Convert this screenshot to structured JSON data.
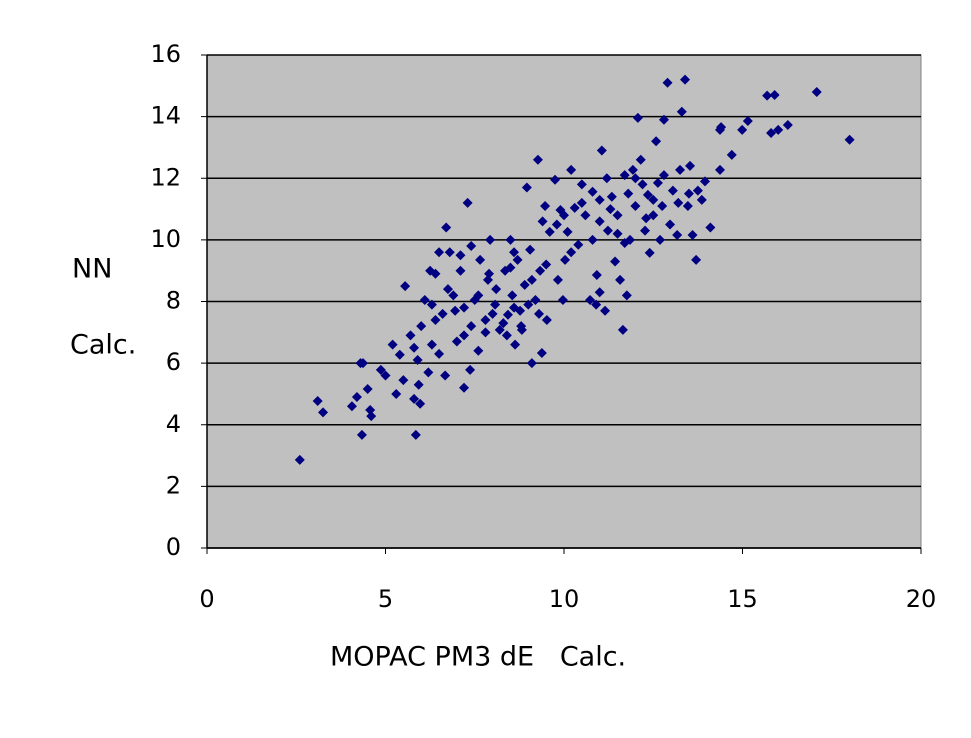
{
  "chart_data": {
    "type": "scatter",
    "xlabel": "MOPAC PM3 dE   Calc.",
    "ylabel": [
      "NN",
      "Calc."
    ],
    "xlim": [
      0,
      20
    ],
    "xticks": [
      0,
      5,
      10,
      15,
      20
    ],
    "ylim": [
      0,
      16
    ],
    "yticks": [
      0,
      2,
      4,
      6,
      8,
      10,
      12,
      14,
      16
    ],
    "grid": true,
    "background": "#c0c0c0",
    "color": "#000080",
    "x": [
      2.6,
      3.1,
      3.25,
      4.06,
      4.2,
      4.34,
      4.37,
      4.5,
      4.57,
      4.6,
      4.87,
      5.0,
      5.2,
      5.4,
      5.55,
      5.5,
      5.7,
      5.8,
      5.85,
      5.9,
      5.97,
      5.93,
      6.1,
      6.25,
      6.3,
      6.4,
      6.5,
      6.67,
      6.7,
      6.75,
      6.95,
      7.1,
      7.2,
      7.2,
      7.3,
      7.37,
      7.4,
      7.5,
      7.6,
      7.65,
      7.8,
      7.87,
      7.93,
      8.07,
      8.2,
      8.35,
      8.43,
      8.5,
      8.55,
      8.63,
      8.7,
      8.77,
      8.82,
      8.9,
      8.96,
      9.05,
      9.1,
      9.2,
      9.27,
      9.33,
      9.38,
      9.47,
      9.52,
      9.6,
      9.75,
      9.83,
      9.9,
      9.97,
      10.03,
      10.1,
      10.2,
      10.3,
      10.4,
      10.5,
      10.6,
      10.73,
      10.8,
      10.92,
      11.0,
      11.06,
      11.15,
      11.23,
      11.34,
      11.43,
      11.5,
      11.57,
      11.65,
      11.7,
      11.76,
      11.85,
      11.93,
      12.0,
      12.07,
      12.15,
      12.27,
      12.35,
      12.4,
      12.5,
      12.58,
      12.63,
      12.69,
      12.75,
      12.8,
      12.9,
      12.97,
      13.05,
      13.17,
      13.25,
      13.3,
      13.39,
      13.47,
      13.53,
      13.6,
      13.7,
      13.75,
      13.86,
      13.95,
      14.1,
      14.37,
      14.37,
      14.4,
      14.7,
      14.99,
      15.15,
      15.69,
      15.9,
      15.8,
      16.0,
      16.27,
      17.08,
      18.0,
      7.8,
      8.0,
      8.3,
      8.6,
      8.8,
      9.0,
      8.4,
      8.1,
      7.9,
      8.5,
      9.1,
      9.3,
      7.6,
      7.2,
      6.9,
      6.6,
      6.3,
      6.0,
      5.8,
      6.2,
      6.5,
      7.0,
      7.4,
      10.0,
      10.5,
      11.0,
      11.3,
      11.8,
      12.2,
      12.5,
      11.5,
      10.8,
      10.2,
      9.5,
      9.8,
      11.2,
      12.0,
      12.8,
      13.2,
      13.5,
      12.3,
      11.7,
      10.9,
      11.0,
      9.4,
      8.6,
      7.1,
      6.8,
      6.4,
      5.3,
      4.3
    ],
    "y": [
      2.86,
      4.77,
      4.4,
      4.6,
      4.9,
      3.67,
      6.0,
      5.16,
      4.48,
      4.28,
      5.78,
      5.6,
      6.6,
      6.27,
      8.5,
      5.45,
      6.9,
      4.84,
      3.67,
      6.1,
      4.68,
      5.3,
      8.05,
      9.0,
      6.6,
      7.4,
      9.6,
      5.6,
      10.4,
      8.4,
      7.7,
      9.0,
      6.9,
      5.2,
      11.2,
      5.78,
      9.8,
      8.05,
      6.4,
      9.35,
      7.4,
      8.7,
      10.0,
      7.9,
      7.08,
      9.0,
      7.57,
      10.0,
      8.2,
      6.6,
      9.35,
      7.7,
      7.08,
      8.54,
      11.7,
      9.68,
      6.0,
      8.05,
      12.6,
      9.0,
      6.33,
      11.1,
      7.4,
      10.26,
      11.95,
      8.7,
      10.97,
      8.05,
      9.35,
      10.26,
      12.27,
      11.04,
      9.84,
      11.8,
      10.8,
      8.05,
      11.56,
      8.86,
      11.3,
      12.9,
      7.7,
      10.3,
      11.4,
      9.3,
      10.8,
      8.7,
      7.08,
      12.1,
      8.2,
      10.0,
      12.27,
      11.1,
      13.96,
      12.6,
      10.3,
      11.46,
      9.58,
      10.8,
      13.2,
      11.85,
      10.0,
      11.1,
      13.9,
      15.1,
      10.5,
      11.6,
      10.16,
      12.27,
      14.16,
      15.2,
      11.1,
      12.4,
      10.16,
      9.35,
      11.6,
      11.3,
      11.9,
      10.4,
      12.27,
      13.57,
      13.66,
      12.76,
      13.57,
      13.86,
      14.68,
      14.7,
      13.47,
      13.57,
      13.73,
      14.8,
      13.25,
      7.0,
      7.6,
      7.3,
      7.8,
      7.2,
      7.9,
      6.9,
      8.4,
      8.9,
      9.1,
      8.7,
      7.6,
      8.2,
      7.8,
      8.2,
      7.6,
      7.9,
      7.2,
      6.5,
      5.7,
      6.3,
      6.7,
      7.2,
      10.8,
      11.2,
      10.6,
      11.0,
      11.5,
      11.8,
      11.3,
      10.2,
      10.0,
      9.6,
      9.2,
      10.5,
      12.0,
      12.0,
      12.1,
      11.2,
      11.5,
      10.7,
      9.9,
      7.9,
      8.3,
      10.6,
      9.6,
      9.5,
      9.6,
      8.9,
      5.0,
      6.0
    ]
  }
}
